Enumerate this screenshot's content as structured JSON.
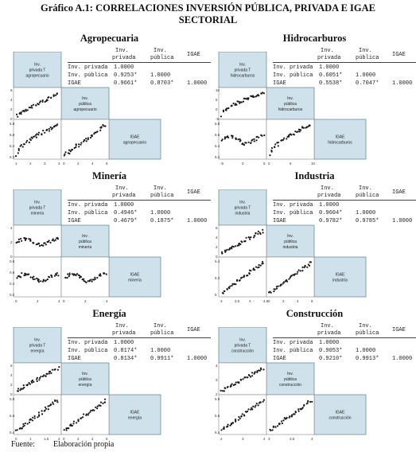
{
  "title_line1": "Gráfico A.1: CORRELACIONES INVERSIÓN PÚBLICA, PRIVADA E IGAE",
  "title_line2": "SECTORIAL",
  "col_headers": {
    "priv_a": "Inv.",
    "priv_b": "privada",
    "pub_a": "Inv.",
    "pub_b": "pública",
    "igae": "IGAE"
  },
  "row_labels": {
    "priv": "Inv. privada",
    "pub": "Inv. pública",
    "igae": "IGAE"
  },
  "one": "1.0000",
  "colors": {
    "diag_fill": "#cfe2ec",
    "diag_border": "#6e8d9e",
    "points": "#1a1a1a"
  },
  "panels": [
    {
      "name": "Agropecuaria",
      "corr": {
        "pub_priv": "0.9253*",
        "igae_priv": "0.9661*",
        "igae_pub": "0.8703*"
      },
      "diag": {
        "priv": [
          "Inv.",
          "privada T",
          "agropecuario"
        ],
        "pub": [
          "Inv.",
          "pública",
          "agropecuario"
        ],
        "igae": [
          "IGAE",
          "agropecuario"
        ]
      },
      "yticks_top": [
        "6",
        "4",
        "2",
        "0"
      ],
      "yticks_bot": [
        "5.8",
        "5.6",
        "5.4",
        "5.2"
      ],
      "xticks_l": [
        "1",
        "2",
        "3",
        "4"
      ],
      "xticks_m": [
        "0",
        "2",
        "4",
        "6"
      ]
    },
    {
      "name": "Hidrocarburos",
      "corr": {
        "pub_priv": "0.6051*",
        "igae_priv": "0.5538*",
        "igae_pub": "0.7047*"
      },
      "diag": {
        "priv": [
          "Inv.",
          "privada T",
          "hidrocarburos"
        ],
        "pub": [
          "Inv.",
          "pública",
          "hidrocarburos"
        ],
        "igae": [
          "IGAE",
          "hidrocarburos"
        ]
      },
      "yticks_top": [
        "10",
        "5",
        "0",
        "-5"
      ],
      "yticks_bot": [
        "5.8",
        "5.6",
        "5.4",
        "5.2"
      ],
      "xticks_l": [
        "-5",
        "0",
        "5"
      ],
      "xticks_m": [
        "0",
        "5",
        "10"
      ]
    },
    {
      "name": "Minería",
      "corr": {
        "pub_priv": "0.4946*",
        "igae_priv": "0.4679*",
        "igae_pub": "0.1875*"
      },
      "diag": {
        "priv": [
          "Inv.",
          "privada T",
          "minería"
        ],
        "pub": [
          "Inv.",
          "pública",
          "minería"
        ],
        "igae": [
          "IGAE",
          "minería"
        ]
      },
      "yticks_top": [
        "4",
        "2",
        "0"
      ],
      "yticks_bot": [
        "0.8",
        "0.6",
        "0.4",
        "0.2"
      ],
      "xticks_l": [
        "0",
        "2",
        "4"
      ],
      "xticks_m": [
        "0",
        "2",
        "4"
      ]
    },
    {
      "name": "Industria",
      "corr": {
        "pub_priv": "0.9604*",
        "igae_priv": "0.9782*",
        "igae_pub": "0.9785*"
      },
      "diag": {
        "priv": [
          "Inv.",
          "privada T",
          "industria"
        ],
        "pub": [
          "Inv.",
          "pública",
          "industria"
        ],
        "igae": [
          "IGAE",
          "industria"
        ]
      },
      "yticks_top": [
        "6",
        "4",
        "2",
        "0"
      ],
      "yticks_bot": [
        "5.4",
        "5.2",
        "5"
      ],
      "xticks_l": [
        "3",
        "3.5",
        "4",
        "4.5"
      ],
      "xticks_m": [
        "0",
        "2",
        "4",
        "6"
      ]
    },
    {
      "name": "Energía",
      "corr": {
        "pub_priv": "0.8174*",
        "igae_priv": "0.8134*",
        "igae_pub": "0.9911*"
      },
      "diag": {
        "priv": [
          "Inv.",
          "privada T",
          "energía"
        ],
        "pub": [
          "Inv.",
          "pública",
          "energía"
        ],
        "igae": [
          "IGAE",
          "energía"
        ]
      },
      "yticks_top": [
        "6",
        "4",
        "2",
        "0"
      ],
      "yticks_bot": [
        "5.8",
        "5.6",
        "5.4"
      ],
      "xticks_l": [
        "0",
        "1",
        "1.5",
        "2"
      ],
      "xticks_m": [
        "0",
        "2",
        "4",
        "6"
      ]
    },
    {
      "name": "Construcción",
      "corr": {
        "pub_priv": "0.9053*",
        "igae_priv": "0.9210*",
        "igae_pub": "0.9913*"
      },
      "diag": {
        "priv": [
          "Inv.",
          "privada T",
          "construcción"
        ],
        "pub": [
          "Inv.",
          "pública",
          "construcción"
        ],
        "igae": [
          "IGAE",
          "construcción"
        ]
      },
      "yticks_top": [
        "4",
        "3",
        "2"
      ],
      "yticks_bot": [
        "5.8",
        "5.6",
        "5.4"
      ],
      "xticks_l": [
        "2",
        "3",
        "4"
      ],
      "xticks_m": [
        "3",
        "3.5",
        "4"
      ]
    }
  ],
  "footer": {
    "label": "Fuente:",
    "text": "Elaboración propia"
  }
}
